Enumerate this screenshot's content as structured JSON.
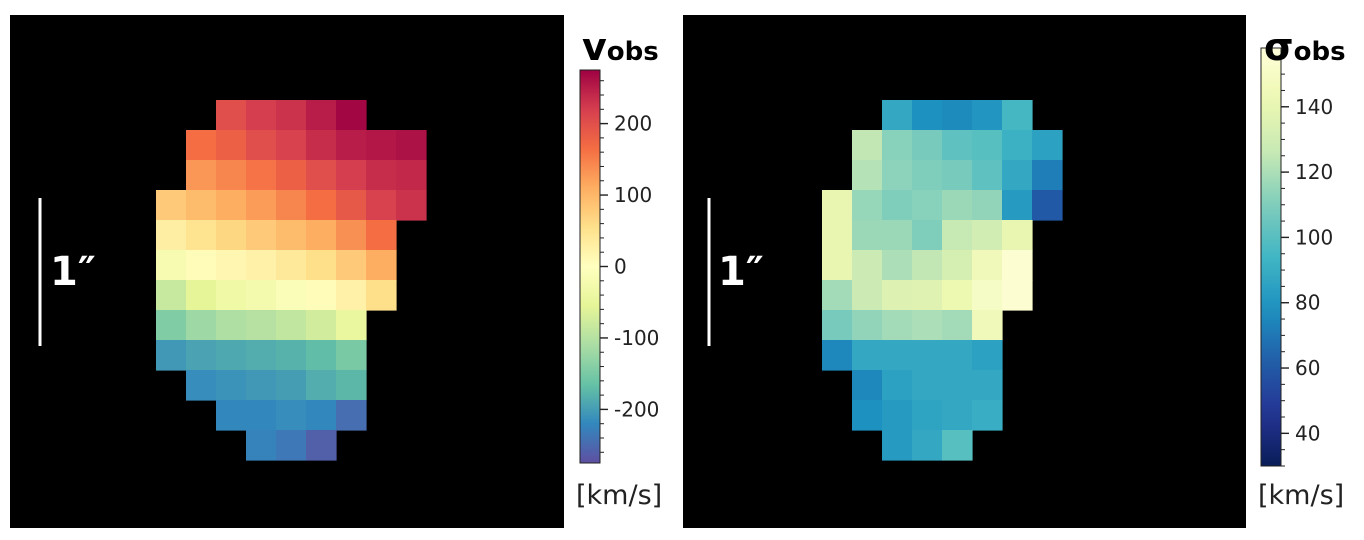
{
  "chart_data": [
    {
      "type": "heatmap",
      "symbol": "v",
      "subscript": "obs",
      "unit": "[km/s]",
      "scale_bar_label": "1″",
      "colormap": "Spectral_r",
      "vmin": -275,
      "vmax": 275,
      "ticks": [
        200,
        100,
        0,
        -100,
        -200
      ],
      "tick_labels": [
        "200",
        "100",
        "0",
        "-100",
        "-200"
      ],
      "grid_cols": 9,
      "grid_rows": 12,
      "values": [
        [
          null,
          null,
          200,
          220,
          230,
          250,
          270,
          null,
          null
        ],
        [
          null,
          165,
          180,
          200,
          215,
          235,
          250,
          255,
          260
        ],
        [
          null,
          130,
          145,
          160,
          180,
          200,
          220,
          235,
          240
        ],
        [
          80,
          95,
          110,
          125,
          145,
          165,
          190,
          215,
          230
        ],
        [
          30,
          50,
          65,
          80,
          95,
          110,
          135,
          165,
          null
        ],
        [
          -20,
          5,
          15,
          25,
          40,
          55,
          80,
          110,
          null
        ],
        [
          -85,
          -55,
          -35,
          -25,
          -10,
          5,
          25,
          55,
          null
        ],
        [
          -145,
          -120,
          -105,
          -100,
          -90,
          -75,
          -45,
          null,
          null
        ],
        [
          -205,
          -195,
          -190,
          -185,
          -180,
          -170,
          -150,
          null,
          null
        ],
        [
          null,
          -215,
          -210,
          -205,
          -200,
          -185,
          -175,
          null,
          null
        ],
        [
          null,
          null,
          -220,
          -220,
          -215,
          -220,
          -245,
          null,
          null
        ],
        [
          null,
          null,
          null,
          -225,
          -235,
          -260,
          null,
          null,
          null
        ]
      ]
    },
    {
      "type": "heatmap",
      "symbol": "σ",
      "subscript": "obs",
      "unit": "[km/s]",
      "scale_bar_label": "1″",
      "colormap": "YlGnBu_r",
      "vmin": 30,
      "vmax": 158,
      "ticks": [
        140,
        120,
        100,
        80,
        60,
        40
      ],
      "tick_labels": [
        "140",
        "120",
        "100",
        "80",
        "60",
        "40"
      ],
      "grid_cols": 8,
      "grid_rows": 12,
      "values": [
        [
          null,
          null,
          88,
          78,
          76,
          80,
          95,
          null
        ],
        [
          null,
          125,
          112,
          108,
          102,
          100,
          92,
          85
        ],
        [
          null,
          122,
          113,
          110,
          108,
          102,
          88,
          72
        ],
        [
          140,
          115,
          110,
          112,
          116,
          114,
          82,
          60
        ],
        [
          140,
          116,
          116,
          110,
          126,
          130,
          140,
          null
        ],
        [
          140,
          128,
          120,
          125,
          132,
          145,
          155,
          null
        ],
        [
          118,
          128,
          135,
          136,
          142,
          150,
          155,
          null
        ],
        [
          108,
          114,
          118,
          120,
          118,
          145,
          null,
          null
        ],
        [
          75,
          88,
          88,
          88,
          88,
          85,
          null,
          null
        ],
        [
          null,
          75,
          85,
          88,
          88,
          88,
          null,
          null
        ],
        [
          null,
          78,
          82,
          86,
          88,
          90,
          null,
          null
        ],
        [
          null,
          null,
          82,
          88,
          100,
          null,
          null,
          null
        ]
      ]
    }
  ]
}
